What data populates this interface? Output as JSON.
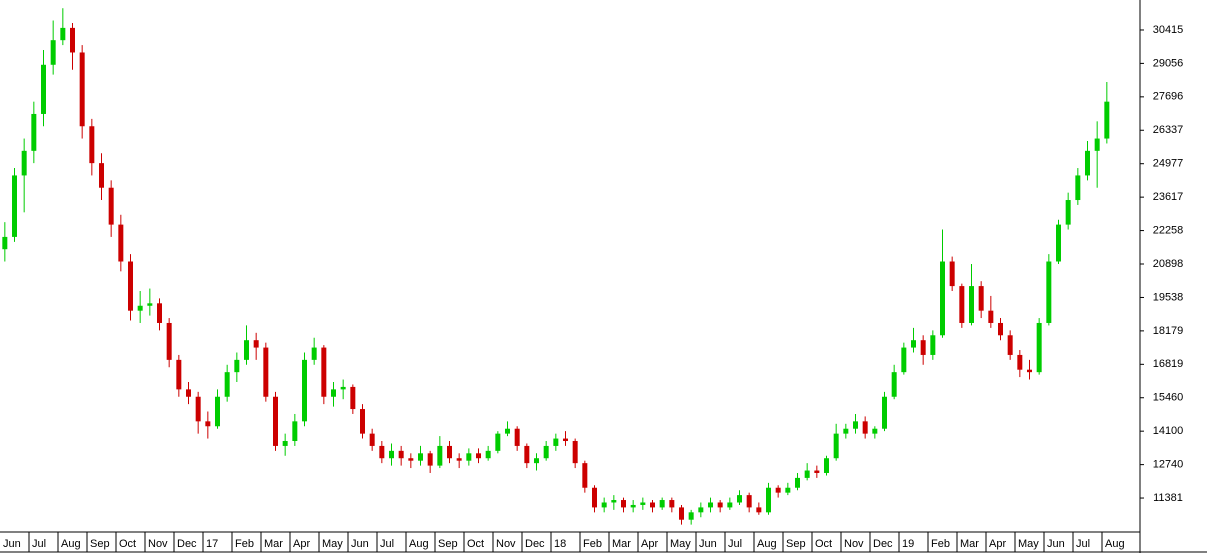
{
  "chart_data": {
    "type": "candlestick",
    "categories": [
      "Jun",
      "Jul",
      "Aug",
      "Sep",
      "Oct",
      "Nov",
      "Dec",
      "17",
      "Feb",
      "Mar",
      "Apr",
      "May",
      "Jun",
      "Jul",
      "Aug",
      "Sep",
      "Oct",
      "Nov",
      "Dec",
      "18",
      "Feb",
      "Mar",
      "Apr",
      "May",
      "Jun",
      "Jul",
      "Aug",
      "Sep",
      "Oct",
      "Nov",
      "Dec",
      "19",
      "Feb",
      "Mar",
      "Apr",
      "May",
      "Jun",
      "Jul",
      "Aug"
    ],
    "ohlc": [
      [
        [
          21500,
          22600,
          21000,
          22000
        ],
        [
          22000,
          24800,
          21800,
          24500
        ],
        [
          24500,
          26000,
          23000,
          25500
        ]
      ],
      [
        [
          25500,
          27500,
          25000,
          27000
        ],
        [
          27000,
          29600,
          26500,
          29000
        ],
        [
          29000,
          30800,
          28600,
          30000
        ]
      ],
      [
        [
          30000,
          31300,
          29800,
          30500
        ],
        [
          30500,
          30700,
          28800,
          29500
        ],
        [
          29500,
          29800,
          26000,
          26500
        ]
      ],
      [
        [
          26500,
          26800,
          24500,
          25000
        ],
        [
          25000,
          25400,
          23500,
          24000
        ],
        [
          24000,
          24300,
          22000,
          22500
        ]
      ],
      [
        [
          22500,
          22900,
          20600,
          21000
        ],
        [
          21000,
          21300,
          18600,
          19000
        ],
        [
          19000,
          19800,
          18500,
          19200
        ]
      ],
      [
        [
          19200,
          19900,
          18800,
          19300
        ],
        [
          19300,
          19500,
          18200,
          18500
        ],
        [
          18500,
          18700,
          16700,
          17000
        ]
      ],
      [
        [
          17000,
          17200,
          15500,
          15800
        ],
        [
          15800,
          16100,
          15200,
          15500
        ],
        [
          15500,
          15700,
          14000,
          14500
        ]
      ],
      [
        [
          14500,
          14900,
          13800,
          14300
        ],
        [
          14300,
          15800,
          14200,
          15500
        ],
        [
          15500,
          16800,
          15300,
          16500
        ]
      ],
      [
        [
          16500,
          17300,
          16100,
          17000
        ],
        [
          17000,
          18400,
          16800,
          17800
        ],
        [
          17800,
          18100,
          17000,
          17500
        ]
      ],
      [
        [
          17500,
          17700,
          15300,
          15500
        ],
        [
          15500,
          15700,
          13300,
          13500
        ],
        [
          13500,
          14000,
          13100,
          13700
        ]
      ],
      [
        [
          13700,
          14800,
          13500,
          14500
        ],
        [
          14500,
          17300,
          14300,
          17000
        ],
        [
          17000,
          17900,
          16800,
          17500
        ]
      ],
      [
        [
          17500,
          17600,
          15200,
          15500
        ],
        [
          15500,
          16100,
          15100,
          15800
        ],
        [
          15800,
          16200,
          15400,
          15900
        ]
      ],
      [
        [
          15900,
          16000,
          14800,
          15000
        ],
        [
          15000,
          15200,
          13800,
          14000
        ],
        [
          14000,
          14200,
          13300,
          13500
        ]
      ],
      [
        [
          13500,
          13700,
          12800,
          13000
        ],
        [
          13000,
          13600,
          12700,
          13300
        ],
        [
          13300,
          13500,
          12700,
          13000
        ]
      ],
      [
        [
          13000,
          13200,
          12600,
          12900
        ],
        [
          12900,
          13500,
          12700,
          13200
        ],
        [
          13200,
          13300,
          12400,
          12700
        ]
      ],
      [
        [
          12700,
          13900,
          12600,
          13500
        ],
        [
          13500,
          13700,
          12800,
          13000
        ],
        [
          13000,
          13200,
          12600,
          12900
        ]
      ],
      [
        [
          12900,
          13400,
          12700,
          13200
        ],
        [
          13200,
          13400,
          12800,
          13000
        ],
        [
          13000,
          13500,
          12900,
          13300
        ]
      ],
      [
        [
          13300,
          14100,
          13200,
          14000
        ],
        [
          14000,
          14500,
          13900,
          14200
        ],
        [
          14200,
          14300,
          13300,
          13500
        ]
      ],
      [
        [
          13500,
          13600,
          12600,
          12800
        ],
        [
          12800,
          13200,
          12500,
          13000
        ],
        [
          13000,
          13700,
          12900,
          13500
        ]
      ],
      [
        [
          13500,
          14000,
          13300,
          13800
        ],
        [
          13800,
          14100,
          13500,
          13700
        ],
        [
          13700,
          13800,
          12600,
          12800
        ]
      ],
      [
        [
          12800,
          12900,
          11600,
          11800
        ],
        [
          11800,
          11900,
          10800,
          11000
        ],
        [
          11000,
          11400,
          10800,
          11200
        ]
      ],
      [
        [
          11200,
          11500,
          10900,
          11300
        ],
        [
          11300,
          11400,
          10800,
          11000
        ],
        [
          11000,
          11300,
          10800,
          11100
        ]
      ],
      [
        [
          11100,
          11400,
          10900,
          11200
        ],
        [
          11200,
          11300,
          10800,
          11000
        ],
        [
          11000,
          11400,
          10900,
          11300
        ]
      ],
      [
        [
          11300,
          11400,
          10800,
          11000
        ],
        [
          11000,
          11100,
          10300,
          10500
        ],
        [
          10500,
          10900,
          10300,
          10800
        ]
      ],
      [
        [
          10800,
          11200,
          10600,
          11000
        ],
        [
          11000,
          11400,
          10800,
          11200
        ],
        [
          11200,
          11300,
          10800,
          11000
        ]
      ],
      [
        [
          11000,
          11400,
          10900,
          11200
        ],
        [
          11200,
          11700,
          11100,
          11500
        ],
        [
          11500,
          11600,
          10800,
          11000
        ]
      ],
      [
        [
          11000,
          11200,
          10700,
          10800
        ],
        [
          10800,
          12000,
          10700,
          11800
        ],
        [
          11800,
          11900,
          11400,
          11600
        ]
      ],
      [
        [
          11600,
          12000,
          11500,
          11800
        ],
        [
          11800,
          12400,
          11700,
          12200
        ],
        [
          12200,
          12800,
          12100,
          12500
        ]
      ],
      [
        [
          12500,
          12700,
          12200,
          12400
        ],
        [
          12400,
          13100,
          12300,
          13000
        ],
        [
          13000,
          14400,
          12900,
          14000
        ]
      ],
      [
        [
          14000,
          14400,
          13800,
          14200
        ],
        [
          14200,
          14800,
          14000,
          14500
        ],
        [
          14500,
          14700,
          13800,
          14000
        ]
      ],
      [
        [
          14000,
          14300,
          13800,
          14200
        ],
        [
          14200,
          15700,
          14100,
          15500
        ],
        [
          15500,
          16800,
          15400,
          16500
        ]
      ],
      [
        [
          16500,
          17700,
          16400,
          17500
        ],
        [
          17500,
          18300,
          17300,
          17800
        ],
        [
          17800,
          18000,
          16800,
          17200
        ]
      ],
      [
        [
          17200,
          18200,
          17000,
          18000
        ],
        [
          18000,
          22300,
          17900,
          21000
        ],
        [
          21000,
          21200,
          19800,
          20000
        ]
      ],
      [
        [
          20000,
          20100,
          18300,
          18500
        ],
        [
          18500,
          20900,
          18400,
          20000
        ],
        [
          20000,
          20200,
          18700,
          19000
        ]
      ],
      [
        [
          19000,
          19600,
          18300,
          18500
        ],
        [
          18500,
          18700,
          17800,
          18000
        ],
        [
          18000,
          18200,
          17000,
          17200
        ]
      ],
      [
        [
          17200,
          17400,
          16300,
          16600
        ],
        [
          16600,
          17000,
          16200,
          16500
        ],
        [
          16500,
          18700,
          16400,
          18500
        ]
      ],
      [
        [
          18500,
          21300,
          18400,
          21000
        ],
        [
          21000,
          22700,
          20900,
          22500
        ],
        [
          22500,
          23800,
          22300,
          23500
        ]
      ],
      [
        [
          23500,
          24800,
          23300,
          24500
        ],
        [
          24500,
          25900,
          24300,
          25500
        ],
        [
          25500,
          26700,
          24000,
          26000
        ]
      ],
      [
        [
          26000,
          28300,
          25800,
          27500
        ]
      ]
    ],
    "up_color": "#00cc00",
    "down_color": "#cc0000",
    "ylim": [
      10000,
      31634
    ],
    "yticks": [
      30415,
      29056,
      27696,
      26337,
      24977,
      23617,
      22258,
      20898,
      19538,
      18179,
      16819,
      15460,
      14100,
      12740,
      11381
    ],
    "grid": false
  }
}
